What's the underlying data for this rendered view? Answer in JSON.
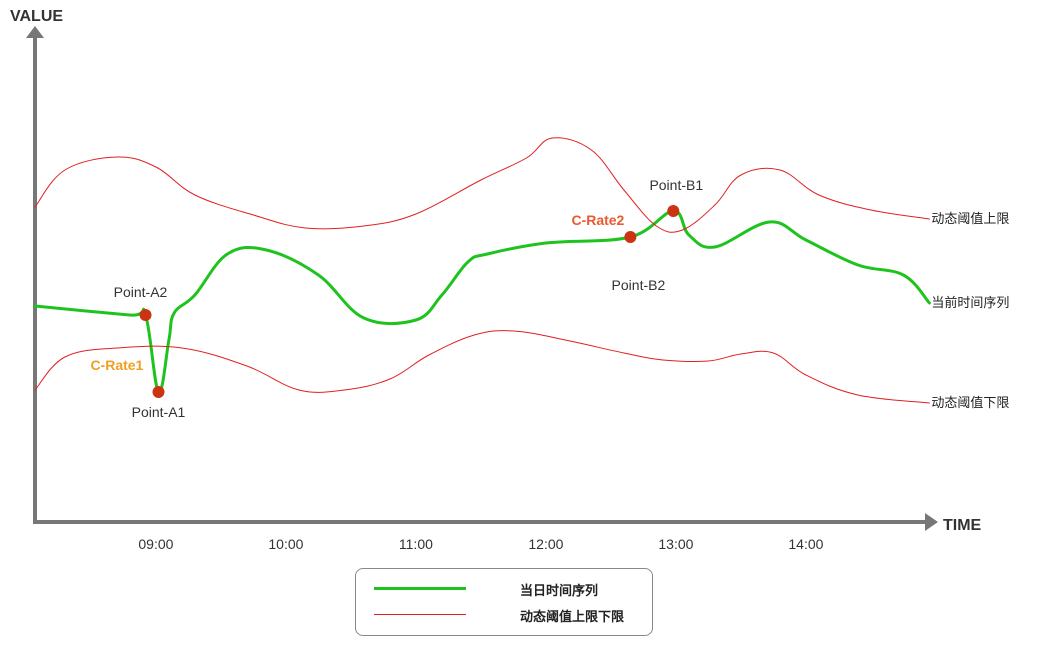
{
  "chart_data": {
    "type": "line",
    "ylabel": "VALUE",
    "xlabel": "TIME",
    "x_ticks": [
      "09:00",
      "10:00",
      "11:00",
      "12:00",
      "13:00",
      "14:00"
    ],
    "x_start_hours": 8.07,
    "x_end_hours": 14.95,
    "grid": false,
    "legend_position": "bottom",
    "colors": {
      "current": "#1ec31e",
      "threshold": "#e02020",
      "point": "#cc3311",
      "rate1": "#f0a020",
      "rate2": "#e85a30",
      "axis": "#777777"
    },
    "series": [
      {
        "name": "当日时间序列",
        "end_label": "当前时间序列",
        "style": "thick",
        "points": [
          [
            8.07,
            306
          ],
          [
            8.8,
            315
          ],
          [
            8.92,
            315
          ],
          [
            9.02,
            392
          ],
          [
            9.1,
            340
          ],
          [
            9.14,
            313
          ],
          [
            9.3,
            295
          ],
          [
            9.55,
            254
          ],
          [
            9.85,
            250
          ],
          [
            10.25,
            275
          ],
          [
            10.6,
            318
          ],
          [
            11.0,
            320
          ],
          [
            11.2,
            295
          ],
          [
            11.4,
            262
          ],
          [
            11.55,
            254
          ],
          [
            12.0,
            243
          ],
          [
            12.65,
            237
          ],
          [
            12.98,
            211
          ],
          [
            13.1,
            235
          ],
          [
            13.3,
            247
          ],
          [
            13.72,
            222
          ],
          [
            14.0,
            240
          ],
          [
            14.4,
            265
          ],
          [
            14.75,
            275
          ],
          [
            14.95,
            303
          ]
        ]
      },
      {
        "name": "动态阈值上限",
        "end_label": "动态阈值上限",
        "style": "thin",
        "points": [
          [
            8.07,
            207
          ],
          [
            8.3,
            170
          ],
          [
            8.7,
            157
          ],
          [
            9.0,
            167
          ],
          [
            9.3,
            195
          ],
          [
            9.75,
            215
          ],
          [
            10.15,
            228
          ],
          [
            10.6,
            226
          ],
          [
            11.0,
            214
          ],
          [
            11.5,
            180
          ],
          [
            11.85,
            158
          ],
          [
            12.05,
            138
          ],
          [
            12.35,
            150
          ],
          [
            12.6,
            190
          ],
          [
            12.85,
            226
          ],
          [
            13.05,
            230
          ],
          [
            13.3,
            205
          ],
          [
            13.5,
            175
          ],
          [
            13.8,
            170
          ],
          [
            14.1,
            195
          ],
          [
            14.5,
            210
          ],
          [
            14.95,
            219
          ]
        ]
      },
      {
        "name": "动态阈值下限",
        "end_label": "动态阈值下限",
        "style": "thin",
        "points": [
          [
            8.07,
            390
          ],
          [
            8.3,
            357
          ],
          [
            8.7,
            348
          ],
          [
            9.2,
            348
          ],
          [
            9.7,
            366
          ],
          [
            10.1,
            390
          ],
          [
            10.45,
            390
          ],
          [
            10.8,
            379
          ],
          [
            11.1,
            355
          ],
          [
            11.45,
            335
          ],
          [
            11.75,
            331
          ],
          [
            12.15,
            340
          ],
          [
            12.6,
            353
          ],
          [
            12.9,
            360
          ],
          [
            13.25,
            361
          ],
          [
            13.5,
            354
          ],
          [
            13.75,
            353
          ],
          [
            14.0,
            375
          ],
          [
            14.4,
            395
          ],
          [
            14.95,
            403
          ]
        ]
      }
    ],
    "annotations": [
      {
        "label": "Point-A1",
        "x": 9.02,
        "y": 392,
        "marker": true
      },
      {
        "label": "Point-A2",
        "x": 8.92,
        "y": 315,
        "marker": true
      },
      {
        "label": "Point-B1",
        "x": 12.98,
        "y": 211,
        "marker": true
      },
      {
        "label": "Point-B2",
        "x": 12.65,
        "y": 237,
        "marker": true
      },
      {
        "label": "C-Rate1",
        "x": 8.7,
        "y": 366,
        "marker": false
      },
      {
        "label": "C-Rate2",
        "x": 12.4,
        "y": 221,
        "marker": false
      }
    ]
  },
  "legend": {
    "items": [
      {
        "label": "当日时间序列"
      },
      {
        "label": "动态阈值上限下限"
      }
    ]
  }
}
